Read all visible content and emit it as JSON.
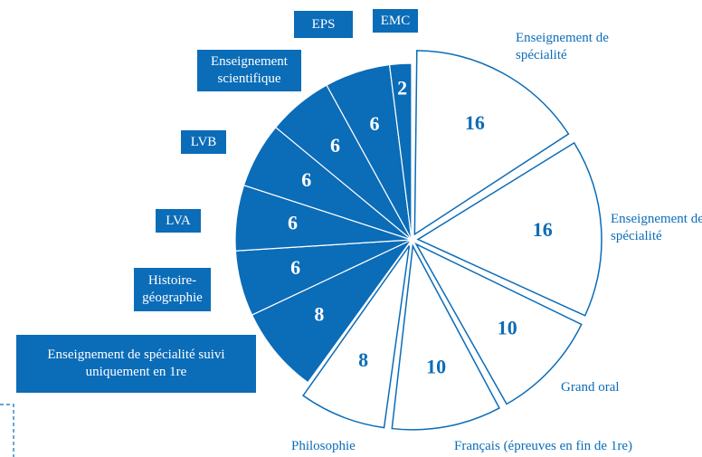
{
  "chart_data": {
    "type": "pie",
    "categories": [
      "Enseignement de spécialité",
      "Enseignement de spécialité",
      "Grand oral",
      "Français (épreuves en fin de 1re)",
      "Philosophie",
      "Enseignement de spécialité suivi uniquement en 1re",
      "Histoire-géographie",
      "LVA",
      "LVB",
      "Enseignement scientifique",
      "EPS",
      "EMC"
    ],
    "values": [
      16,
      16,
      10,
      10,
      8,
      8,
      6,
      6,
      6,
      6,
      6,
      2
    ],
    "colors": [
      "#ffffff",
      "#ffffff",
      "#ffffff",
      "#ffffff",
      "#ffffff",
      "#0b6cb8",
      "#0b6cb8",
      "#0b6cb8",
      "#0b6cb8",
      "#0b6cb8",
      "#0b6cb8",
      "#0b6cb8"
    ],
    "edge_color": "#0b6cb8"
  }
}
